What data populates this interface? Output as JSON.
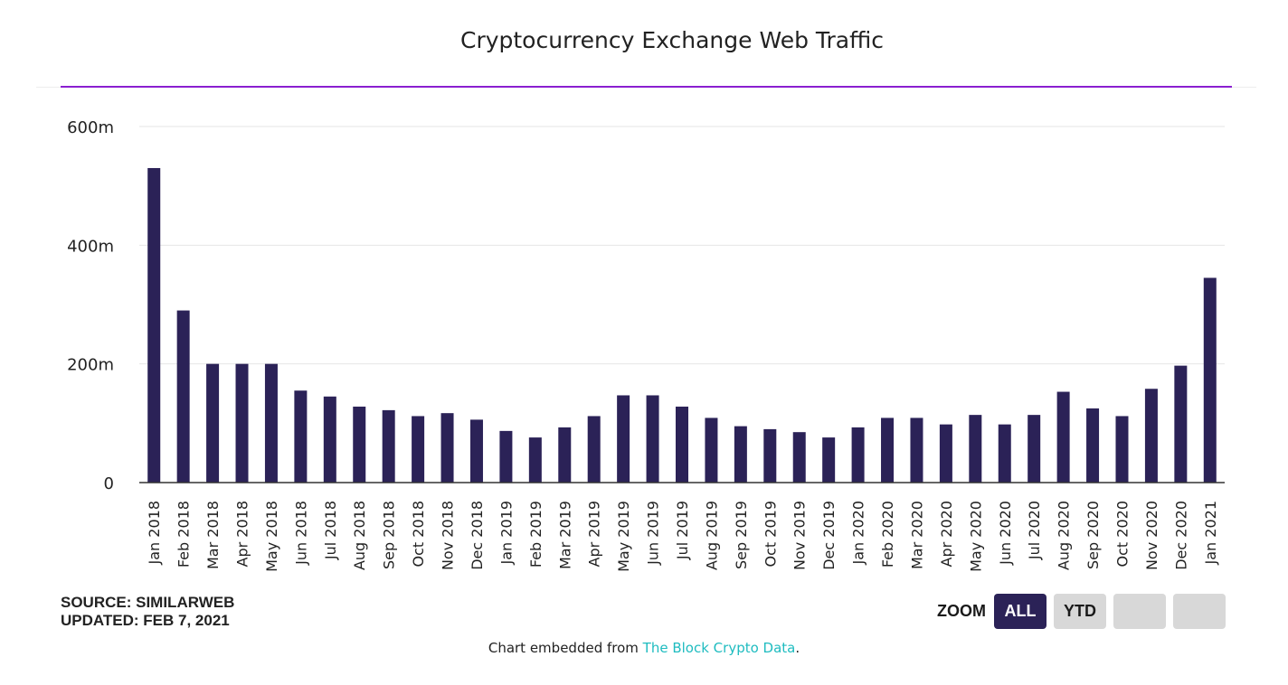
{
  "chart_data": {
    "type": "bar",
    "title": "Cryptocurrency Exchange Web Traffic",
    "xlabel": "",
    "ylabel": "",
    "ylim": [
      0,
      600
    ],
    "yticks": [
      "0",
      "200m",
      "400m",
      "600m"
    ],
    "categories": [
      "Jan 2018",
      "Feb 2018",
      "Mar 2018",
      "Apr 2018",
      "May 2018",
      "Jun 2018",
      "Jul 2018",
      "Aug 2018",
      "Sep 2018",
      "Oct 2018",
      "Nov 2018",
      "Dec 2018",
      "Jan 2019",
      "Feb 2019",
      "Mar 2019",
      "Apr 2019",
      "May 2019",
      "Jun 2019",
      "Jul 2019",
      "Aug 2019",
      "Sep 2019",
      "Oct 2019",
      "Nov 2019",
      "Dec 2019",
      "Jan 2020",
      "Feb 2020",
      "Mar 2020",
      "Apr 2020",
      "May 2020",
      "Jun 2020",
      "Jul 2020",
      "Aug 2020",
      "Sep 2020",
      "Oct 2020",
      "Nov 2020",
      "Dec 2020",
      "Jan 2021"
    ],
    "values": [
      530,
      290,
      200,
      200,
      200,
      155,
      145,
      128,
      122,
      112,
      117,
      106,
      87,
      76,
      93,
      112,
      147,
      147,
      128,
      109,
      95,
      90,
      85,
      76,
      93,
      109,
      109,
      98,
      114,
      98,
      114,
      153,
      125,
      112,
      158,
      197,
      345
    ],
    "bar_color": "#2b2257",
    "grid": true
  },
  "footer": {
    "source": "SOURCE: SIMILARWEB",
    "updated": "UPDATED: FEB 7, 2021",
    "embed_prefix": "Chart embedded from ",
    "embed_link": "The Block Crypto Data",
    "embed_suffix": "."
  },
  "zoom": {
    "label": "ZOOM",
    "buttons": [
      "ALL",
      "YTD",
      "",
      ""
    ],
    "active": "ALL"
  },
  "colors": {
    "accent_line": "#8a1fd0",
    "bar": "#2b2257",
    "link": "#1fbcc0",
    "button_inactive": "#d8d8d8"
  }
}
